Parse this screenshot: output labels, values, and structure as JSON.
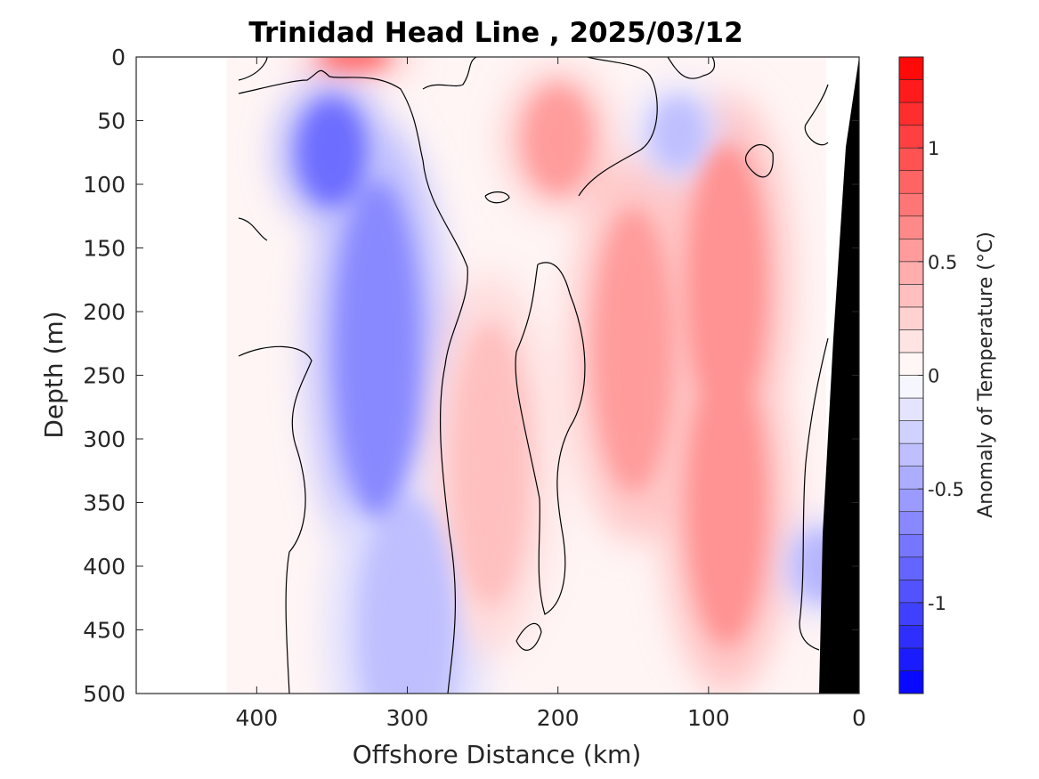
{
  "chart_data": {
    "type": "heatmap",
    "title": "Trinidad Head Line , 2025/03/12",
    "xlabel": "Offshore Distance (km)",
    "ylabel": "Depth (m)",
    "xlim": [
      480,
      0
    ],
    "ylim": [
      0,
      500
    ],
    "x_ticks": [
      "400",
      "300",
      "200",
      "100",
      "0"
    ],
    "y_ticks": [
      "0",
      "50",
      "100",
      "150",
      "200",
      "250",
      "300",
      "350",
      "400",
      "450",
      "500"
    ],
    "colorbar": {
      "label": "Anomaly of Temperature (°C)",
      "range": [
        -1.4,
        1.4
      ],
      "step": 0.1,
      "ticks": [
        "-1",
        "-0.5",
        "0",
        "0.5",
        "1"
      ],
      "colormap": "blue-white-red",
      "colors": {
        "negative": "#0000ff",
        "zero": "#ffffff",
        "positive": "#ff0000"
      }
    },
    "data_extent_km": [
      420,
      22
    ],
    "contour_level": 0,
    "bathymetry_color": "#000000",
    "features": [
      {
        "type": "cold_core",
        "x_km": 350,
        "depth_m": 75,
        "anomaly": -0.8
      },
      {
        "type": "cold_core",
        "x_km": 320,
        "depth_m": 230,
        "anomaly": -0.65
      },
      {
        "type": "cold_tongue",
        "x_km": 300,
        "depth_m": 450,
        "anomaly": -0.35
      },
      {
        "type": "warm_core",
        "x_km": 200,
        "depth_m": 65,
        "anomaly": 0.55
      },
      {
        "type": "warm_core",
        "x_km": 245,
        "depth_m": 320,
        "anomaly": 0.35
      },
      {
        "type": "warm_core",
        "x_km": 150,
        "depth_m": 230,
        "anomaly": 0.55
      },
      {
        "type": "warm_core",
        "x_km": 88,
        "depth_m": 350,
        "anomaly": 0.6
      },
      {
        "type": "warm_core",
        "x_km": 88,
        "depth_m": 180,
        "anomaly": 0.6
      },
      {
        "type": "surface_warm",
        "x_km": 335,
        "depth_m": 0,
        "anomaly": 0.9
      },
      {
        "type": "cool_patch",
        "x_km": 120,
        "depth_m": 60,
        "anomaly": -0.35
      },
      {
        "type": "cool_patch",
        "x_km": 25,
        "depth_m": 400,
        "anomaly": -0.4
      }
    ]
  }
}
